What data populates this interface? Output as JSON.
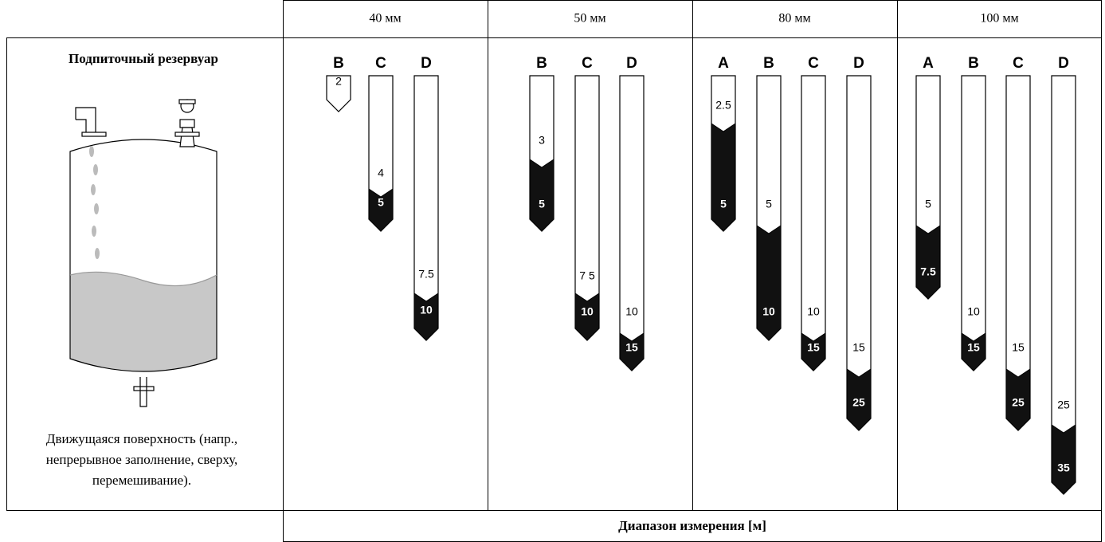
{
  "header": {
    "columns": [
      "40 мм",
      "50 мм",
      "80 мм",
      "100 мм"
    ]
  },
  "tank": {
    "title": "Подпиточный резервуар",
    "caption": [
      "Движущаяся поверхность (напр.,",
      "непрерывное заполнение, сверху,",
      "перемешивание)."
    ]
  },
  "groups": [
    {
      "bars": [
        {
          "letter": "B",
          "upper": "2"
        },
        {
          "letter": "C",
          "upper": "4",
          "lower": "5"
        },
        {
          "letter": "D",
          "upper": "7.5",
          "lower": "10"
        }
      ]
    },
    {
      "bars": [
        {
          "letter": "B",
          "upper": "3",
          "lower": "5"
        },
        {
          "letter": "C",
          "upper": "7 5",
          "lower": "10"
        },
        {
          "letter": "D",
          "upper": "10",
          "lower": "15"
        }
      ]
    },
    {
      "bars": [
        {
          "letter": "A",
          "upper": "2.5",
          "lower": "5"
        },
        {
          "letter": "B",
          "upper": "5",
          "lower": "10"
        },
        {
          "letter": "C",
          "upper": "10",
          "lower": "15"
        },
        {
          "letter": "D",
          "upper": "15",
          "lower": "25"
        }
      ]
    },
    {
      "bars": [
        {
          "letter": "A",
          "upper": "5",
          "lower": "7.5"
        },
        {
          "letter": "B",
          "upper": "10",
          "lower": "15"
        },
        {
          "letter": "C",
          "upper": "15",
          "lower": "25"
        },
        {
          "letter": "D",
          "upper": "25",
          "lower": "35"
        }
      ]
    }
  ],
  "footer": "Диапазон измерения [м]"
}
